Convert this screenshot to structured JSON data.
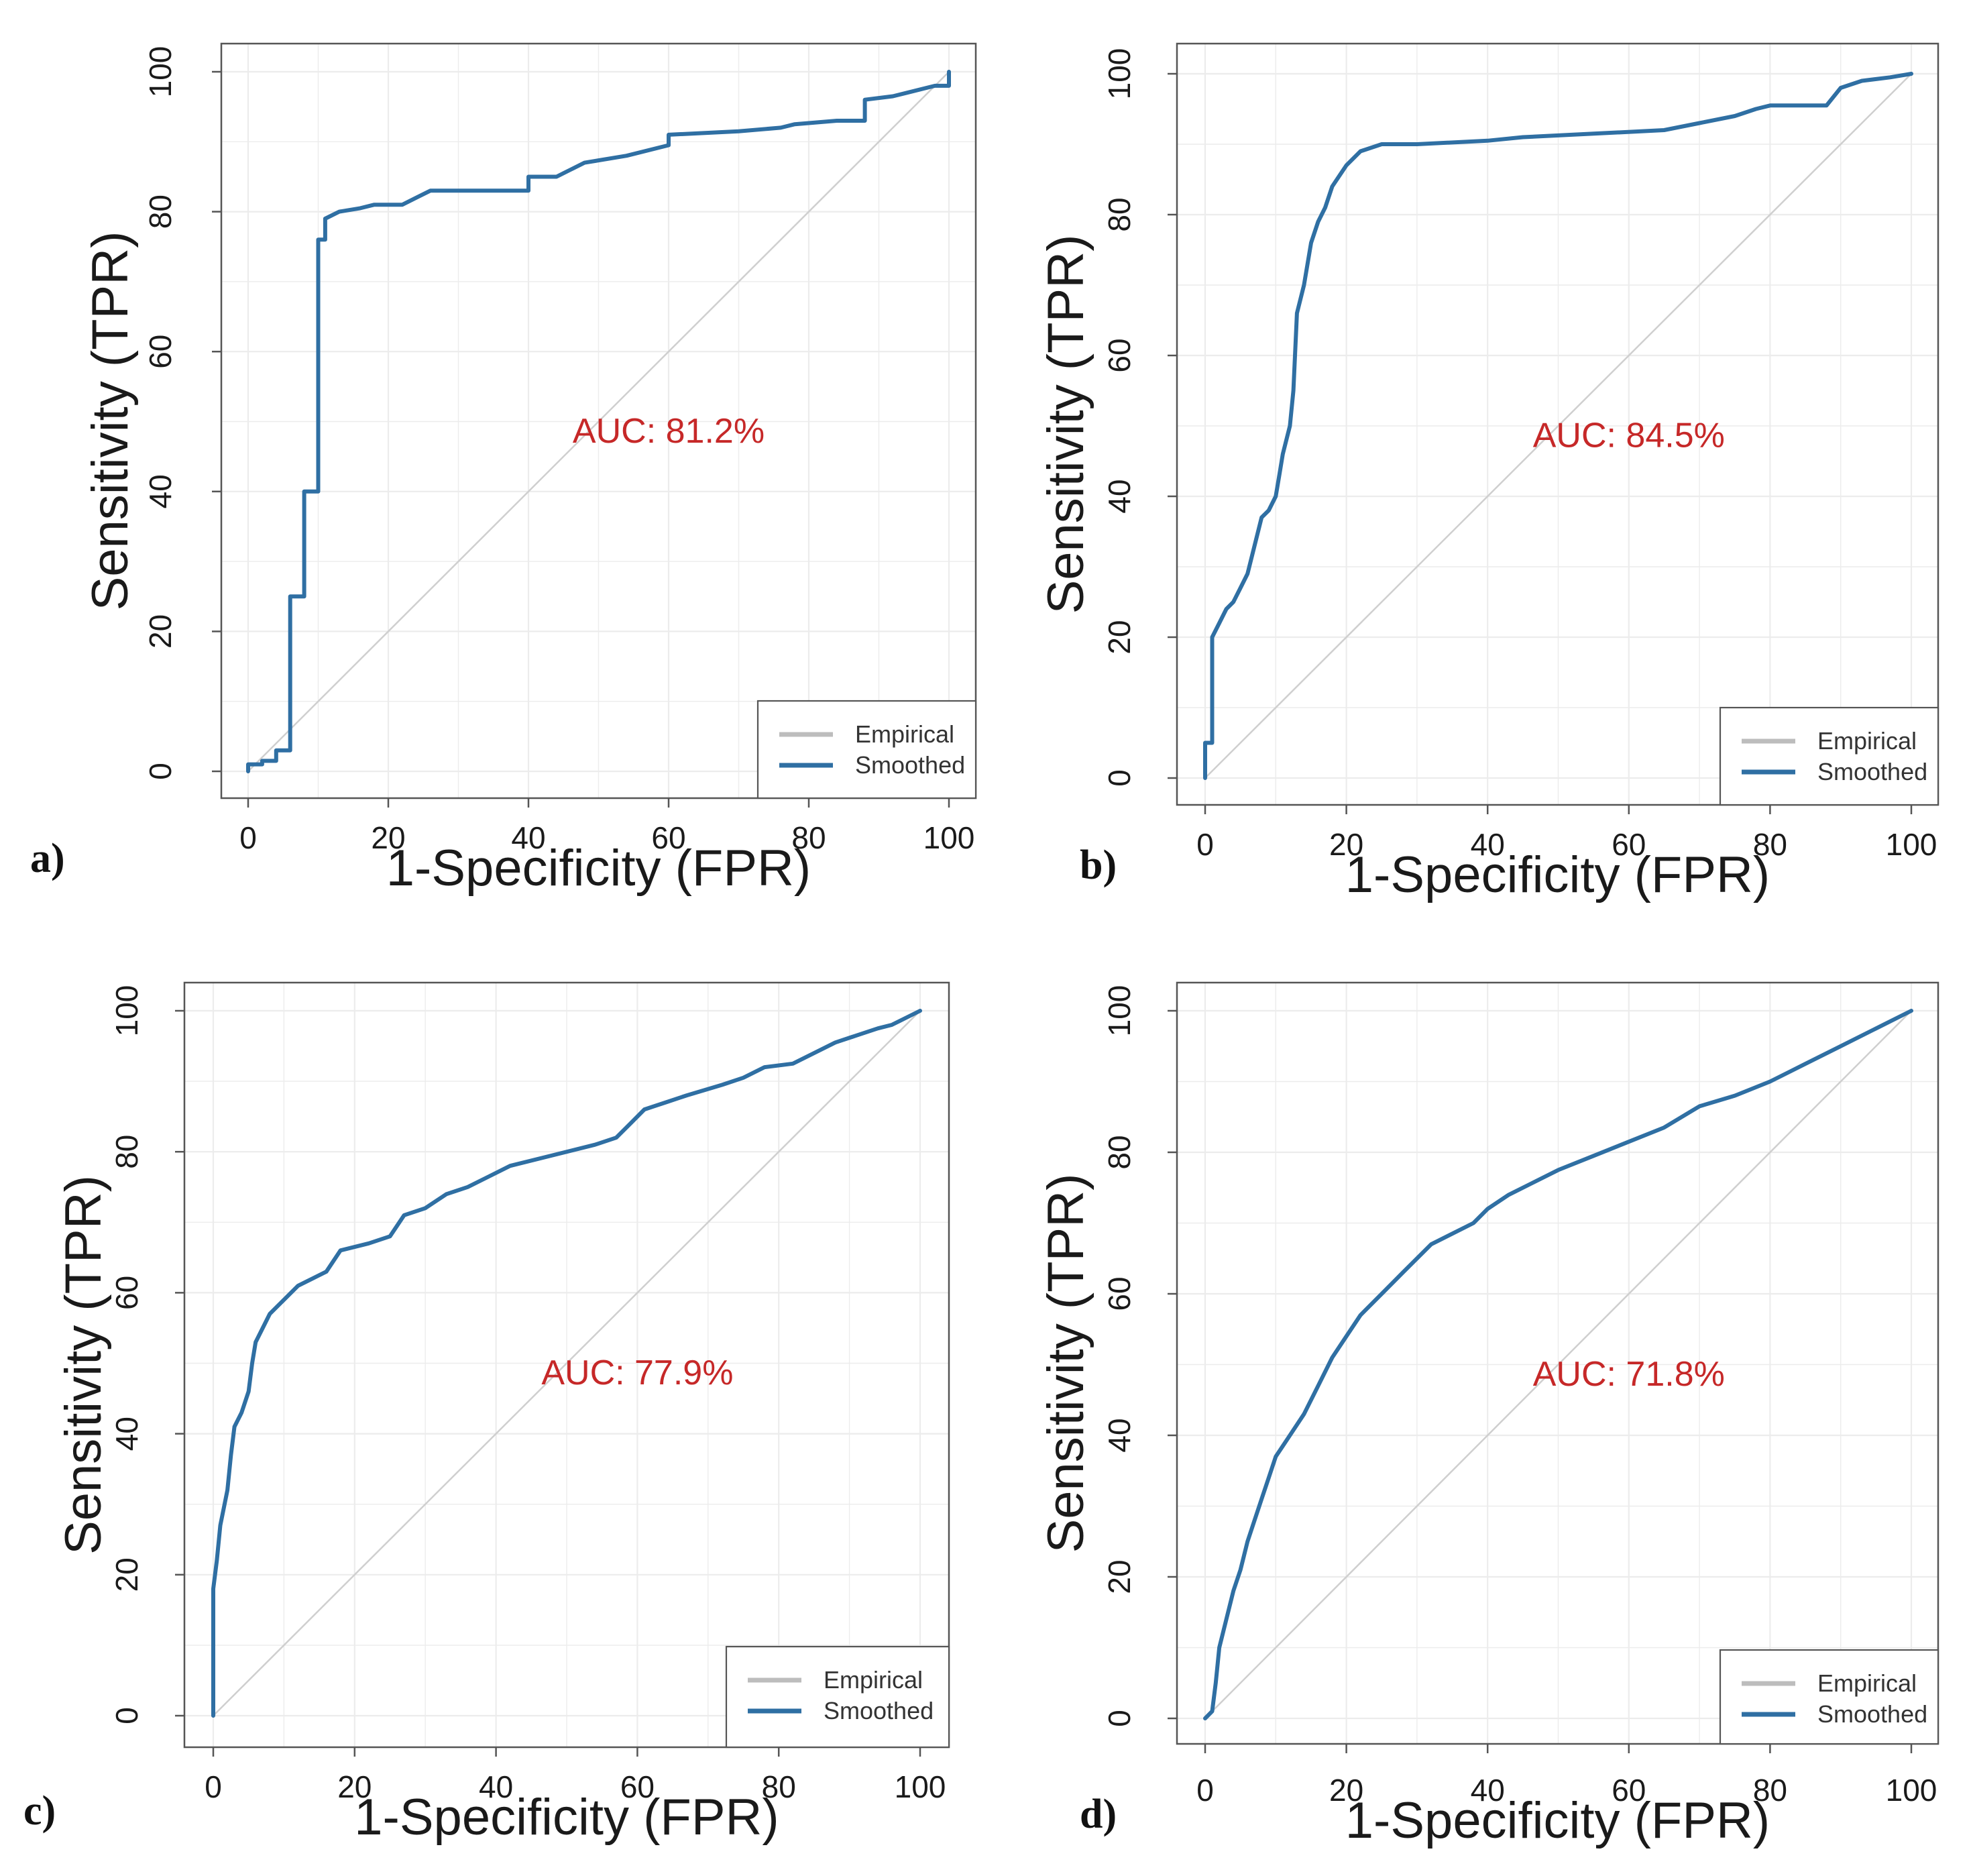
{
  "colors": {
    "smoothed": "#2f6fa3",
    "empirical": "#bdbdbd",
    "auc_text": "#c62828",
    "grid": "#ececec",
    "diagonal": "#cfcfcf",
    "frame": "#555555"
  },
  "chart_data": [
    {
      "type": "line",
      "panel": "a)",
      "xlabel": "1-Specificity (FPR)",
      "ylabel": "Sensitivity (TPR)",
      "xlim": [
        0,
        100
      ],
      "ylim": [
        0,
        100
      ],
      "xticks": [
        "0",
        "20",
        "40",
        "60",
        "80",
        "100"
      ],
      "yticks": [
        "0",
        "20",
        "40",
        "60",
        "80",
        "100"
      ],
      "grid": true,
      "annotation": "AUC: 81.2%",
      "legend": {
        "position": "bottom-right",
        "entries": [
          "Empirical",
          "Smoothed"
        ]
      },
      "reference_line": [
        [
          0,
          0
        ],
        [
          100,
          100
        ]
      ],
      "series": [
        {
          "name": "Smoothed",
          "points": [
            [
              0,
              0
            ],
            [
              0,
              1
            ],
            [
              2,
              1
            ],
            [
              2,
              1.5
            ],
            [
              4,
              1.5
            ],
            [
              4,
              3
            ],
            [
              6,
              3
            ],
            [
              6,
              25
            ],
            [
              8,
              25
            ],
            [
              8,
              40
            ],
            [
              10,
              40
            ],
            [
              10,
              76
            ],
            [
              11,
              76
            ],
            [
              11,
              79
            ],
            [
              13,
              80
            ],
            [
              16,
              80.5
            ],
            [
              18,
              81
            ],
            [
              22,
              81
            ],
            [
              24,
              82
            ],
            [
              26,
              83
            ],
            [
              30,
              83
            ],
            [
              40,
              83
            ],
            [
              40,
              85
            ],
            [
              44,
              85
            ],
            [
              46,
              86
            ],
            [
              48,
              87
            ],
            [
              54,
              88
            ],
            [
              60,
              89.5
            ],
            [
              60,
              91
            ],
            [
              70,
              91.5
            ],
            [
              76,
              92
            ],
            [
              78,
              92.5
            ],
            [
              84,
              93
            ],
            [
              86,
              93
            ],
            [
              88,
              93
            ],
            [
              88,
              96
            ],
            [
              92,
              96.5
            ],
            [
              94,
              97
            ],
            [
              98,
              98
            ],
            [
              100,
              98
            ],
            [
              100,
              100
            ]
          ]
        }
      ]
    },
    {
      "type": "line",
      "panel": "b)",
      "xlabel": "1-Specificity (FPR)",
      "ylabel": "Sensitivity (TPR)",
      "xlim": [
        0,
        100
      ],
      "ylim": [
        0,
        100
      ],
      "xticks": [
        "0",
        "20",
        "40",
        "60",
        "80",
        "100"
      ],
      "yticks": [
        "0",
        "20",
        "40",
        "60",
        "80",
        "100"
      ],
      "grid": true,
      "annotation": "AUC: 84.5%",
      "legend": {
        "position": "bottom-right",
        "entries": [
          "Empirical",
          "Smoothed"
        ]
      },
      "reference_line": [
        [
          0,
          0
        ],
        [
          100,
          100
        ]
      ],
      "series": [
        {
          "name": "Smoothed",
          "points": [
            [
              0,
              0
            ],
            [
              0,
              5
            ],
            [
              1,
              5
            ],
            [
              1,
              20
            ],
            [
              2,
              22
            ],
            [
              3,
              24
            ],
            [
              4,
              25
            ],
            [
              5,
              27
            ],
            [
              6,
              29
            ],
            [
              7,
              33
            ],
            [
              8,
              37
            ],
            [
              9,
              38
            ],
            [
              10,
              40
            ],
            [
              10.5,
              43
            ],
            [
              11,
              46
            ],
            [
              12,
              50
            ],
            [
              12.5,
              55
            ],
            [
              13,
              66
            ],
            [
              14,
              70
            ],
            [
              15,
              76
            ],
            [
              16,
              79
            ],
            [
              17,
              81
            ],
            [
              18,
              84
            ],
            [
              20,
              87
            ],
            [
              22,
              89
            ],
            [
              25,
              90
            ],
            [
              30,
              90
            ],
            [
              40,
              90.5
            ],
            [
              45,
              91
            ],
            [
              55,
              91.5
            ],
            [
              65,
              92
            ],
            [
              70,
              93
            ],
            [
              75,
              94
            ],
            [
              78,
              95
            ],
            [
              80,
              95.5
            ],
            [
              88,
              95.5
            ],
            [
              90,
              98
            ],
            [
              93,
              99
            ],
            [
              97,
              99.5
            ],
            [
              100,
              100
            ]
          ]
        }
      ]
    },
    {
      "type": "line",
      "panel": "c)",
      "xlabel": "1-Specificity (FPR)",
      "ylabel": "Sensitivity (TPR)",
      "xlim": [
        0,
        100
      ],
      "ylim": [
        0,
        100
      ],
      "xticks": [
        "0",
        "20",
        "40",
        "60",
        "80",
        "100"
      ],
      "yticks": [
        "0",
        "20",
        "40",
        "60",
        "80",
        "100"
      ],
      "grid": true,
      "annotation": "AUC: 77.9%",
      "legend": {
        "position": "bottom-right",
        "entries": [
          "Empirical",
          "Smoothed"
        ]
      },
      "reference_line": [
        [
          0,
          0
        ],
        [
          100,
          100
        ]
      ],
      "series": [
        {
          "name": "Smoothed",
          "points": [
            [
              0,
              0
            ],
            [
              0,
              18
            ],
            [
              0.5,
              22
            ],
            [
              1,
              27
            ],
            [
              2,
              32
            ],
            [
              2.5,
              37
            ],
            [
              3,
              41
            ],
            [
              4,
              43
            ],
            [
              5,
              46
            ],
            [
              5.5,
              50
            ],
            [
              6,
              53
            ],
            [
              7,
              55
            ],
            [
              8,
              57
            ],
            [
              10,
              59
            ],
            [
              12,
              61
            ],
            [
              14,
              62
            ],
            [
              16,
              63
            ],
            [
              18,
              66
            ],
            [
              22,
              67
            ],
            [
              25,
              68
            ],
            [
              27,
              71
            ],
            [
              30,
              72
            ],
            [
              33,
              74
            ],
            [
              36,
              75
            ],
            [
              39,
              76.5
            ],
            [
              42,
              78
            ],
            [
              48,
              79.5
            ],
            [
              54,
              81
            ],
            [
              57,
              82
            ],
            [
              59,
              84
            ],
            [
              61,
              86
            ],
            [
              64,
              87
            ],
            [
              67,
              88
            ],
            [
              72,
              89.5
            ],
            [
              75,
              90.5
            ],
            [
              78,
              92
            ],
            [
              82,
              92.5
            ],
            [
              85,
              94
            ],
            [
              88,
              95.5
            ],
            [
              91,
              96.5
            ],
            [
              94,
              97.5
            ],
            [
              96,
              98
            ],
            [
              98,
              99
            ],
            [
              100,
              100
            ]
          ]
        }
      ]
    },
    {
      "type": "line",
      "panel": "d)",
      "xlabel": "1-Specificity (FPR)",
      "ylabel": "Sensitivity (TPR)",
      "xlim": [
        0,
        100
      ],
      "ylim": [
        0,
        100
      ],
      "xticks": [
        "0",
        "20",
        "40",
        "60",
        "80",
        "100"
      ],
      "yticks": [
        "0",
        "20",
        "40",
        "60",
        "80",
        "100"
      ],
      "grid": true,
      "annotation": "AUC: 71.8%",
      "legend": {
        "position": "bottom-right",
        "entries": [
          "Empirical",
          "Smoothed"
        ]
      },
      "reference_line": [
        [
          0,
          0
        ],
        [
          100,
          100
        ]
      ],
      "series": [
        {
          "name": "Smoothed",
          "points": [
            [
              0,
              0
            ],
            [
              1,
              1
            ],
            [
              1.5,
              5
            ],
            [
              2,
              10
            ],
            [
              3,
              14
            ],
            [
              4,
              18
            ],
            [
              5,
              21
            ],
            [
              6,
              25
            ],
            [
              7,
              28
            ],
            [
              8,
              31
            ],
            [
              9,
              34
            ],
            [
              10,
              37
            ],
            [
              12,
              40
            ],
            [
              14,
              43
            ],
            [
              16,
              47
            ],
            [
              18,
              51
            ],
            [
              20,
              54
            ],
            [
              22,
              57
            ],
            [
              25,
              60
            ],
            [
              28,
              63
            ],
            [
              30,
              65
            ],
            [
              32,
              67
            ],
            [
              35,
              68.5
            ],
            [
              38,
              70
            ],
            [
              40,
              72
            ],
            [
              43,
              74
            ],
            [
              46,
              75.5
            ],
            [
              50,
              77.5
            ],
            [
              55,
              79.5
            ],
            [
              60,
              81.5
            ],
            [
              65,
              83.5
            ],
            [
              70,
              86.5
            ],
            [
              75,
              88
            ],
            [
              80,
              90
            ],
            [
              85,
              92.5
            ],
            [
              90,
              95
            ],
            [
              95,
              97.5
            ],
            [
              100,
              100
            ]
          ]
        }
      ]
    }
  ]
}
